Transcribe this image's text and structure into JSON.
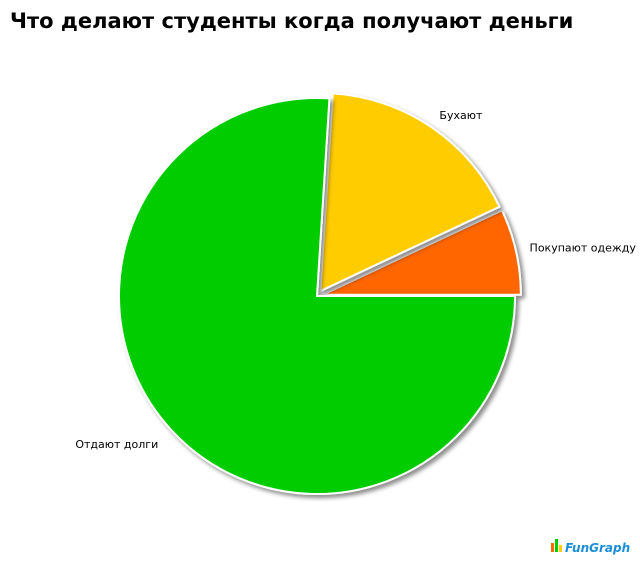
{
  "chart_data": {
    "type": "pie",
    "title": "Что делают студенты когда получают деньги",
    "categories": [
      "Покупают одежду",
      "Бухают",
      "Отдают долги"
    ],
    "values": [
      7,
      17,
      76
    ],
    "colors": [
      "#ff6600",
      "#ffcc00",
      "#00cc00"
    ],
    "explode": [
      true,
      true,
      false
    ]
  },
  "logo": "FunGraph"
}
